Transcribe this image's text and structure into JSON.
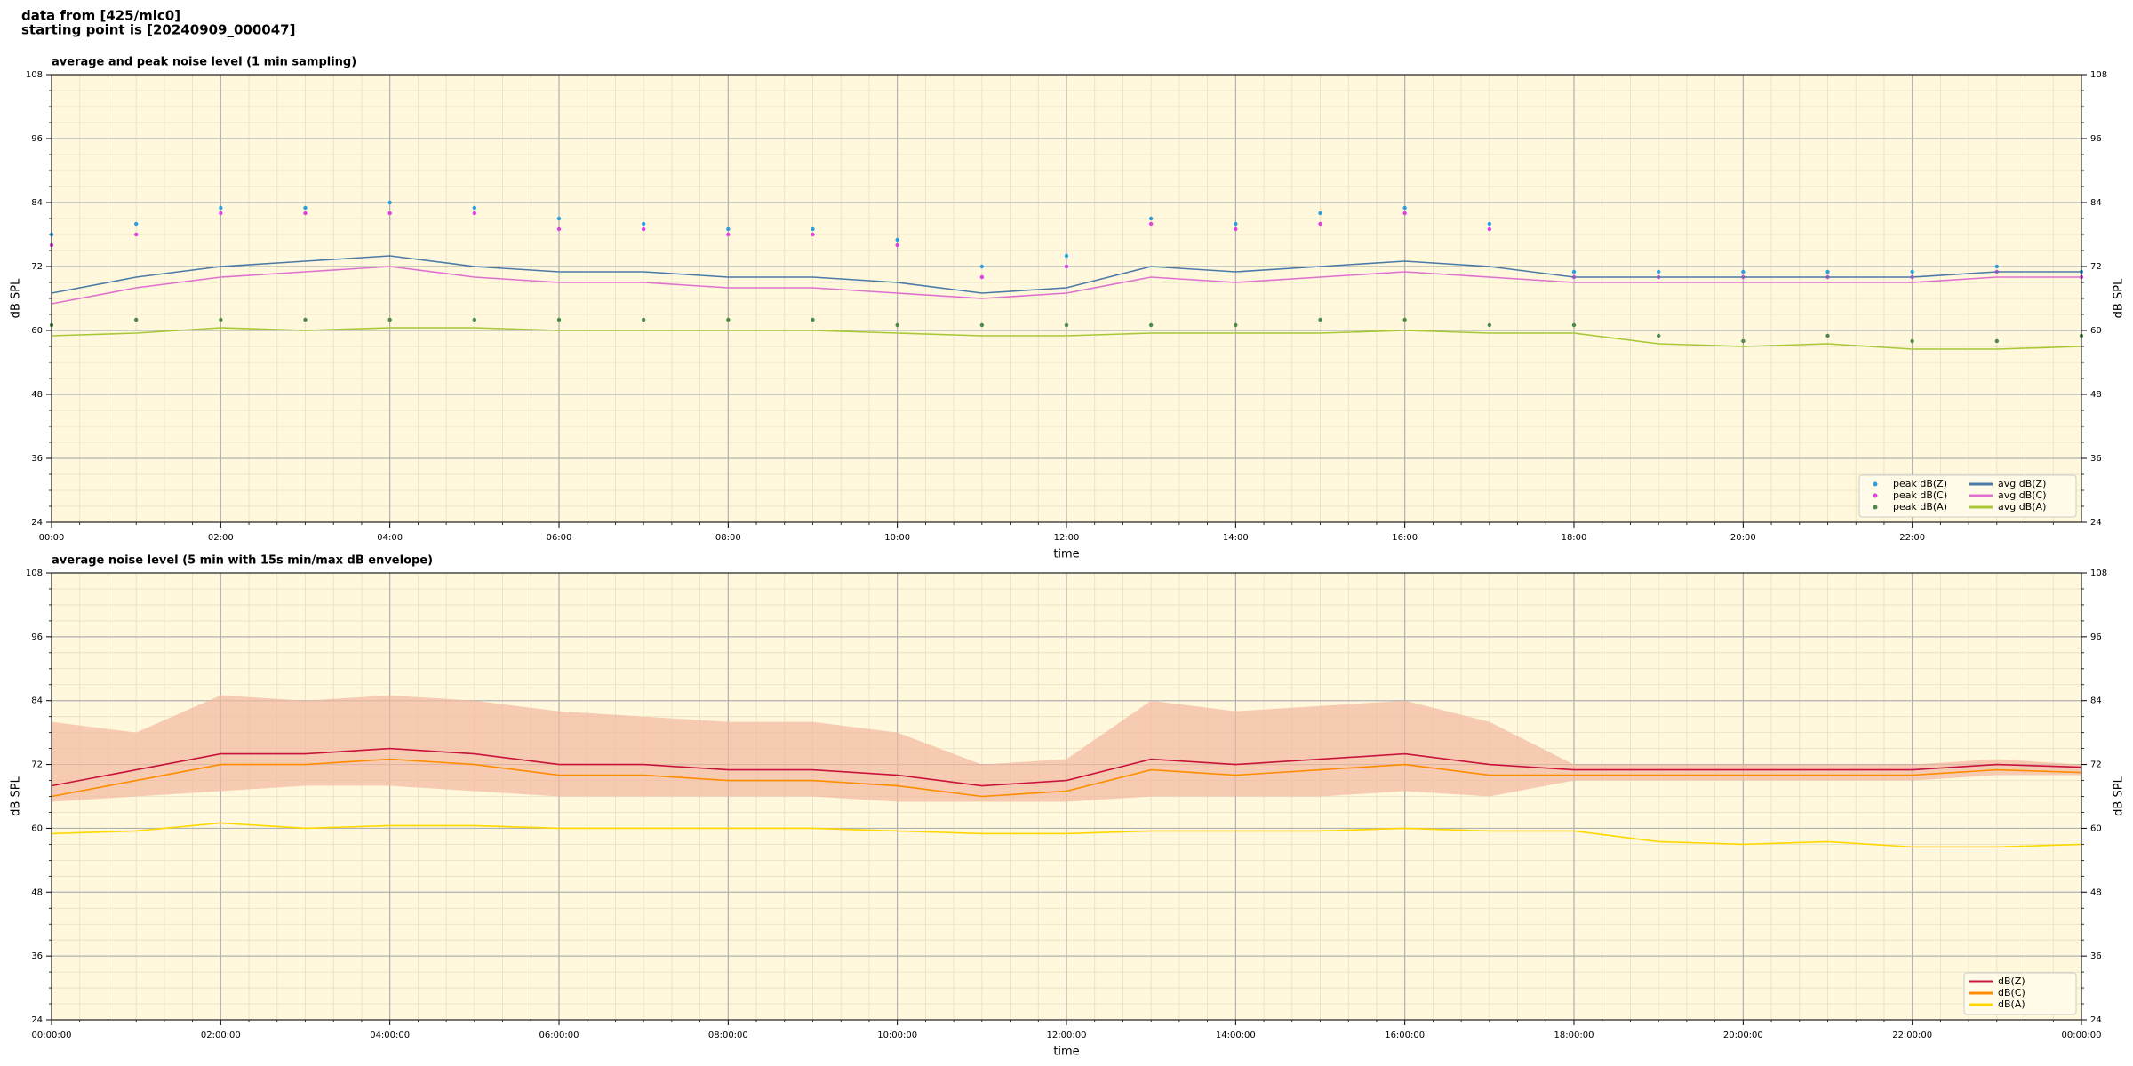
{
  "header": {
    "lines": [
      "data from [425/mic0]",
      "starting point is [20240909_000047]"
    ]
  },
  "chart_data": [
    {
      "type": "line",
      "title": "average and peak noise level (1 min sampling)",
      "xlabel": "time",
      "ylabel": "dB SPL",
      "x": [
        0,
        1,
        2,
        3,
        4,
        5,
        6,
        7,
        8,
        9,
        10,
        11,
        12,
        13,
        14,
        15,
        16,
        17,
        18,
        19,
        20,
        21,
        22,
        23,
        24
      ],
      "xlim": [
        0,
        24
      ],
      "xticks": [
        {
          "value": 0,
          "label": "00:00"
        },
        {
          "value": 2,
          "label": "02:00"
        },
        {
          "value": 4,
          "label": "04:00"
        },
        {
          "value": 6,
          "label": "06:00"
        },
        {
          "value": 8,
          "label": "08:00"
        },
        {
          "value": 10,
          "label": "10:00"
        },
        {
          "value": 12,
          "label": "12:00"
        },
        {
          "value": 14,
          "label": "14:00"
        },
        {
          "value": 16,
          "label": "16:00"
        },
        {
          "value": 18,
          "label": "18:00"
        },
        {
          "value": 20,
          "label": "20:00"
        },
        {
          "value": 22,
          "label": "22:00"
        }
      ],
      "ylim": [
        24,
        108
      ],
      "yticks": [
        24,
        36,
        48,
        60,
        72,
        84,
        96,
        108
      ],
      "grid": true,
      "legend": "lower right",
      "legend_columns": 2,
      "series": [
        {
          "name": "peak dB(Z)",
          "style": "markers",
          "color": "#2b9fe0",
          "values": [
            78,
            80,
            83,
            83,
            84,
            83,
            81,
            80,
            79,
            79,
            77,
            72,
            74,
            81,
            80,
            82,
            83,
            80,
            71,
            71,
            71,
            71,
            71,
            72,
            71
          ]
        },
        {
          "name": "peak dB(C)",
          "style": "markers",
          "color": "#e040e0",
          "values": [
            76,
            78,
            82,
            82,
            82,
            82,
            79,
            79,
            78,
            78,
            76,
            70,
            72,
            80,
            79,
            80,
            82,
            79,
            70,
            70,
            70,
            70,
            70,
            71,
            70
          ]
        },
        {
          "name": "peak dB(A)",
          "style": "markers",
          "color": "#4a8a4a",
          "values": [
            61,
            62,
            62,
            62,
            62,
            62,
            62,
            62,
            62,
            62,
            61,
            61,
            61,
            61,
            61,
            62,
            62,
            61,
            61,
            59,
            58,
            59,
            58,
            58,
            59
          ]
        },
        {
          "name": "avg dB(Z)",
          "style": "line",
          "color": "#4a7aa8",
          "values": [
            67,
            70,
            72,
            73,
            74,
            72,
            71,
            71,
            70,
            70,
            69,
            67,
            68,
            72,
            71,
            72,
            73,
            72,
            70,
            70,
            70,
            70,
            70,
            71,
            71
          ]
        },
        {
          "name": "avg dB(C)",
          "style": "line",
          "color": "#e070d0",
          "values": [
            65,
            68,
            70,
            71,
            72,
            70,
            69,
            69,
            68,
            68,
            67,
            66,
            67,
            70,
            69,
            70,
            71,
            70,
            69,
            69,
            69,
            69,
            69,
            70,
            70
          ]
        },
        {
          "name": "avg dB(A)",
          "style": "line",
          "color": "#a8c838",
          "values": [
            59,
            59.5,
            60.5,
            60,
            60.5,
            60.5,
            60,
            60,
            60,
            60,
            59.5,
            59,
            59,
            59.5,
            59.5,
            59.5,
            60,
            59.5,
            59.5,
            57.5,
            57,
            57.5,
            56.5,
            56.5,
            57
          ]
        }
      ]
    },
    {
      "type": "line",
      "title": "average noise level (5 min with 15s min/max dB envelope)",
      "xlabel": "time",
      "ylabel": "dB SPL",
      "x": [
        0,
        1,
        2,
        3,
        4,
        5,
        6,
        7,
        8,
        9,
        10,
        11,
        12,
        13,
        14,
        15,
        16,
        17,
        18,
        19,
        20,
        21,
        22,
        23,
        24
      ],
      "xlim": [
        0,
        24
      ],
      "xticks": [
        {
          "value": 0,
          "label": "00:00:00"
        },
        {
          "value": 2,
          "label": "02:00:00"
        },
        {
          "value": 4,
          "label": "04:00:00"
        },
        {
          "value": 6,
          "label": "06:00:00"
        },
        {
          "value": 8,
          "label": "08:00:00"
        },
        {
          "value": 10,
          "label": "10:00:00"
        },
        {
          "value": 12,
          "label": "12:00:00"
        },
        {
          "value": 14,
          "label": "14:00:00"
        },
        {
          "value": 16,
          "label": "16:00:00"
        },
        {
          "value": 18,
          "label": "18:00:00"
        },
        {
          "value": 20,
          "label": "20:00:00"
        },
        {
          "value": 22,
          "label": "22:00:00"
        },
        {
          "value": 24,
          "label": "00:00:00"
        }
      ],
      "ylim": [
        24,
        108
      ],
      "yticks": [
        24,
        36,
        48,
        60,
        72,
        84,
        96,
        108
      ],
      "grid": true,
      "legend": "lower right",
      "legend_columns": 1,
      "envelope": {
        "color": "#f4b8a0",
        "upper": [
          80,
          78,
          85,
          84,
          85,
          84,
          82,
          81,
          80,
          80,
          78,
          72,
          73,
          84,
          82,
          83,
          84,
          80,
          72,
          72,
          72,
          72,
          72,
          73,
          72
        ],
        "lower": [
          65,
          66,
          67,
          68,
          68,
          67,
          66,
          66,
          66,
          66,
          65,
          65,
          65,
          66,
          66,
          66,
          67,
          66,
          69,
          69,
          69,
          69,
          69,
          70,
          70
        ]
      },
      "series": [
        {
          "name": "dB(Z)",
          "style": "line",
          "color": "#c8143c",
          "values": [
            68,
            71,
            74,
            74,
            75,
            74,
            72,
            72,
            71,
            71,
            70,
            68,
            69,
            73,
            72,
            73,
            74,
            72,
            71,
            71,
            71,
            71,
            71,
            72,
            71.5
          ]
        },
        {
          "name": "dB(C)",
          "style": "line",
          "color": "#ff8c00",
          "values": [
            66,
            69,
            72,
            72,
            73,
            72,
            70,
            70,
            69,
            69,
            68,
            66,
            67,
            71,
            70,
            71,
            72,
            70,
            70,
            70,
            70,
            70,
            70,
            71,
            70.5
          ]
        },
        {
          "name": "dB(A)",
          "style": "line",
          "color": "#ffd700",
          "values": [
            59,
            59.5,
            61,
            60,
            60.5,
            60.5,
            60,
            60,
            60,
            60,
            59.5,
            59,
            59,
            59.5,
            59.5,
            59.5,
            60,
            59.5,
            59.5,
            57.5,
            57,
            57.5,
            56.5,
            56.5,
            57
          ]
        }
      ]
    }
  ]
}
